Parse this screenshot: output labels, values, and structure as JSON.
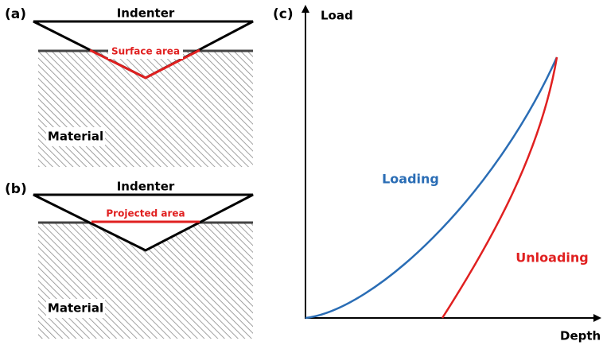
{
  "panels": [
    {
      "label": "(a)",
      "indenter": "Indenter",
      "area": "Surface area",
      "material": "Material"
    },
    {
      "label": "(b)",
      "indenter": "Indenter",
      "area": "Projected area",
      "material": "Material"
    },
    {
      "label": "(c)",
      "y_axis": "Load",
      "x_axis": "Depth",
      "loading": "Loading",
      "unloading": "Unloading"
    }
  ]
}
